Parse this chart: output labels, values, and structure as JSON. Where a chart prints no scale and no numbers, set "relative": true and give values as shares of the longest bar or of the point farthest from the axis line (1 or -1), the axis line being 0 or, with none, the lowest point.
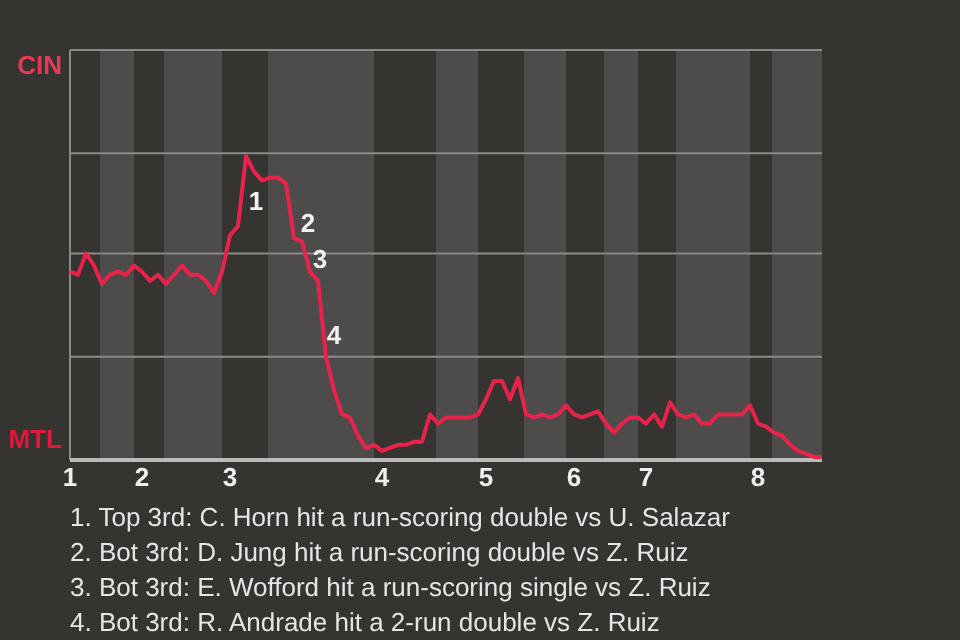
{
  "chart_data": {
    "type": "line",
    "categories": [
      "1",
      null,
      null,
      null,
      null,
      null,
      null,
      null,
      null,
      "2",
      null,
      null,
      null,
      null,
      null,
      null,
      null,
      null,
      null,
      null,
      "3",
      null,
      null,
      null,
      null,
      null,
      null,
      null,
      null,
      null,
      null,
      null,
      null,
      null,
      null,
      null,
      null,
      null,
      null,
      "4",
      null,
      null,
      null,
      null,
      null,
      null,
      null,
      null,
      null,
      null,
      null,
      null,
      "5",
      null,
      null,
      null,
      null,
      null,
      null,
      null,
      null,
      null,
      null,
      "6",
      null,
      null,
      null,
      null,
      null,
      null,
      null,
      null,
      "7",
      null,
      null,
      null,
      null,
      null,
      null,
      null,
      null,
      null,
      null,
      null,
      null,
      null,
      "8",
      null,
      null,
      null,
      null,
      null,
      null,
      null,
      null
    ],
    "series": [
      {
        "color": "#e8234b",
        "values": [
          0.62,
          0.61,
          0.68,
          0.64,
          0.58,
          0.61,
          0.62,
          0.61,
          0.64,
          0.62,
          0.59,
          0.61,
          0.58,
          0.61,
          0.64,
          0.61,
          0.61,
          0.59,
          0.55,
          0.62,
          0.74,
          0.77,
          1,
          0.95,
          0.92,
          0.93,
          0.93,
          0.91,
          0.73,
          0.72,
          0.62,
          0.59,
          0.34,
          0.23,
          0.15,
          0.14,
          0.08,
          0.04,
          0.05,
          0.03,
          0.04,
          0.05,
          0.05,
          0.06,
          0.06,
          0.15,
          0.12,
          0.14,
          0.14,
          0.14,
          0.14,
          0.15,
          0.2,
          0.26,
          0.26,
          0.2,
          0.27,
          0.15,
          0.14,
          0.15,
          0.14,
          0.15,
          0.18,
          0.15,
          0.14,
          0.15,
          0.16,
          0.12,
          0.09,
          0.12,
          0.14,
          0.14,
          0.12,
          0.15,
          0.11,
          0.19,
          0.15,
          0.14,
          0.15,
          0.12,
          0.12,
          0.15,
          0.15,
          0.15,
          0.15,
          0.18,
          0.12,
          0.11,
          0.09,
          0.08,
          0.05,
          0.03,
          0.02,
          0.01,
          0.01
        ]
      }
    ],
    "relative": true,
    "ref_lines": [
      {
        "axis": "y",
        "value": 0.34,
        "color": "#8c8a88"
      },
      {
        "axis": "y",
        "value": 0.68,
        "color": "#8c8a88"
      },
      {
        "axis": "y",
        "value": 1.01,
        "color": "#8c8a88"
      },
      {
        "axis": "y",
        "value": 1.35,
        "color": "#8c8a88"
      }
    ],
    "annotations": [
      "CIN",
      "MTL",
      "1",
      "2",
      "3",
      "4",
      "1. Top 3rd: C. Horn hit a run-scoring double vs U. Salazar",
      "2. Bot 3rd: D. Jung hit a run-scoring double vs Z. Ruiz",
      "3. Bot 3rd: E. Wofford hit a run-scoring single vs Z. Ruiz",
      "4. Bot 3rd: R. Andrade hit a 2-run double vs Z. Ruiz"
    ]
  }
}
